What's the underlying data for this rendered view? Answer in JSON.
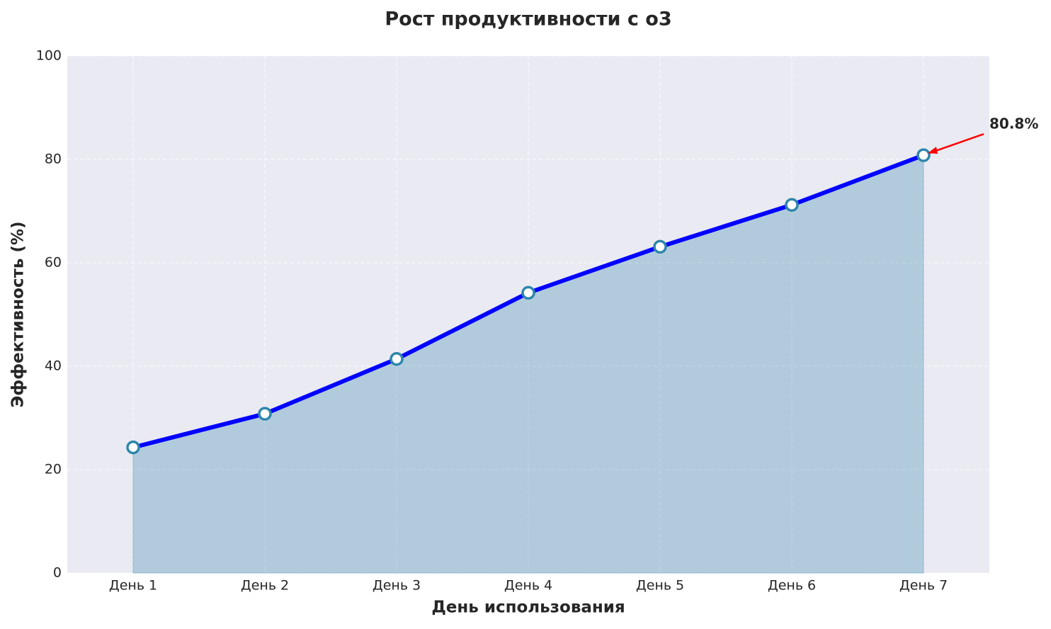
{
  "chart_data": {
    "type": "area-line",
    "title": "Рост продуктивности с o3",
    "xlabel": "День использования",
    "ylabel": "Эффективность (%)",
    "categories": [
      "День 1",
      "День 2",
      "День 3",
      "День 4",
      "День 5",
      "День 6",
      "День 7"
    ],
    "values": [
      24.3,
      30.8,
      41.4,
      54.2,
      63.1,
      71.2,
      80.8
    ],
    "value_labels": [
      null,
      null,
      null,
      null,
      null,
      null,
      "80.8%"
    ],
    "color": "#0000ff",
    "marker_color": "#2e86ab",
    "fill_color": "#2e86ab",
    "annotation_color": "#ff0000",
    "ylim": [
      0,
      100
    ],
    "yticks": [
      0,
      20,
      40,
      60,
      80,
      100
    ],
    "grid": true
  }
}
